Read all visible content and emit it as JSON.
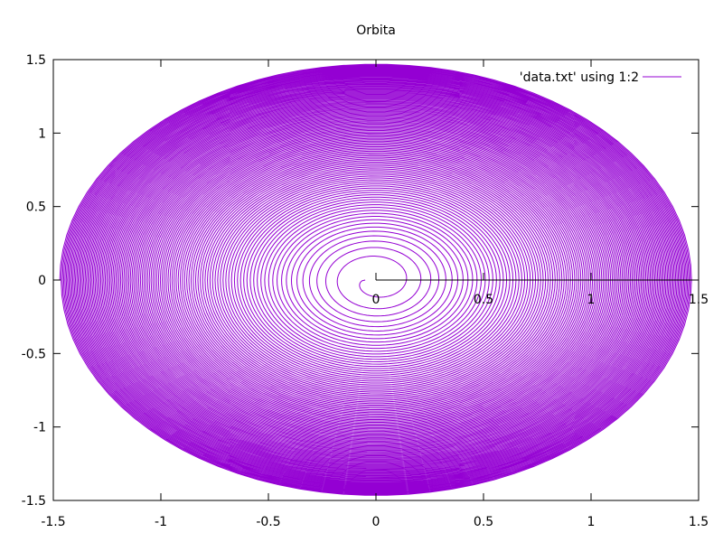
{
  "chart_data": {
    "type": "line",
    "title": "Orbita",
    "xlabel": "",
    "ylabel": "",
    "xlim": [
      -1.5,
      1.5
    ],
    "ylim": [
      -1.5,
      1.5
    ],
    "xticks": [
      "-1.5",
      "-1",
      "-0.5",
      "0",
      "0.5",
      "1",
      "1.5"
    ],
    "yticks": [
      "1.5",
      "1",
      "0.5",
      "0",
      "-0.5",
      "-1",
      "-1.5"
    ],
    "axis_ticks": [
      "0",
      "0.5",
      "1",
      "1.5"
    ],
    "legend": {
      "position": "top-right",
      "label": "'data.txt' using 1:2"
    },
    "grid": false,
    "series": [
      {
        "name": "'data.txt' using 1:2",
        "color": "#9400d3",
        "shape": "spiral",
        "center": [
          0,
          0
        ],
        "inner_radius": 0.05,
        "outer_radius": 1.47,
        "turns": 120
      }
    ]
  },
  "colors": {
    "series": "#9400d3",
    "axis": "#000000",
    "background": "#ffffff"
  }
}
